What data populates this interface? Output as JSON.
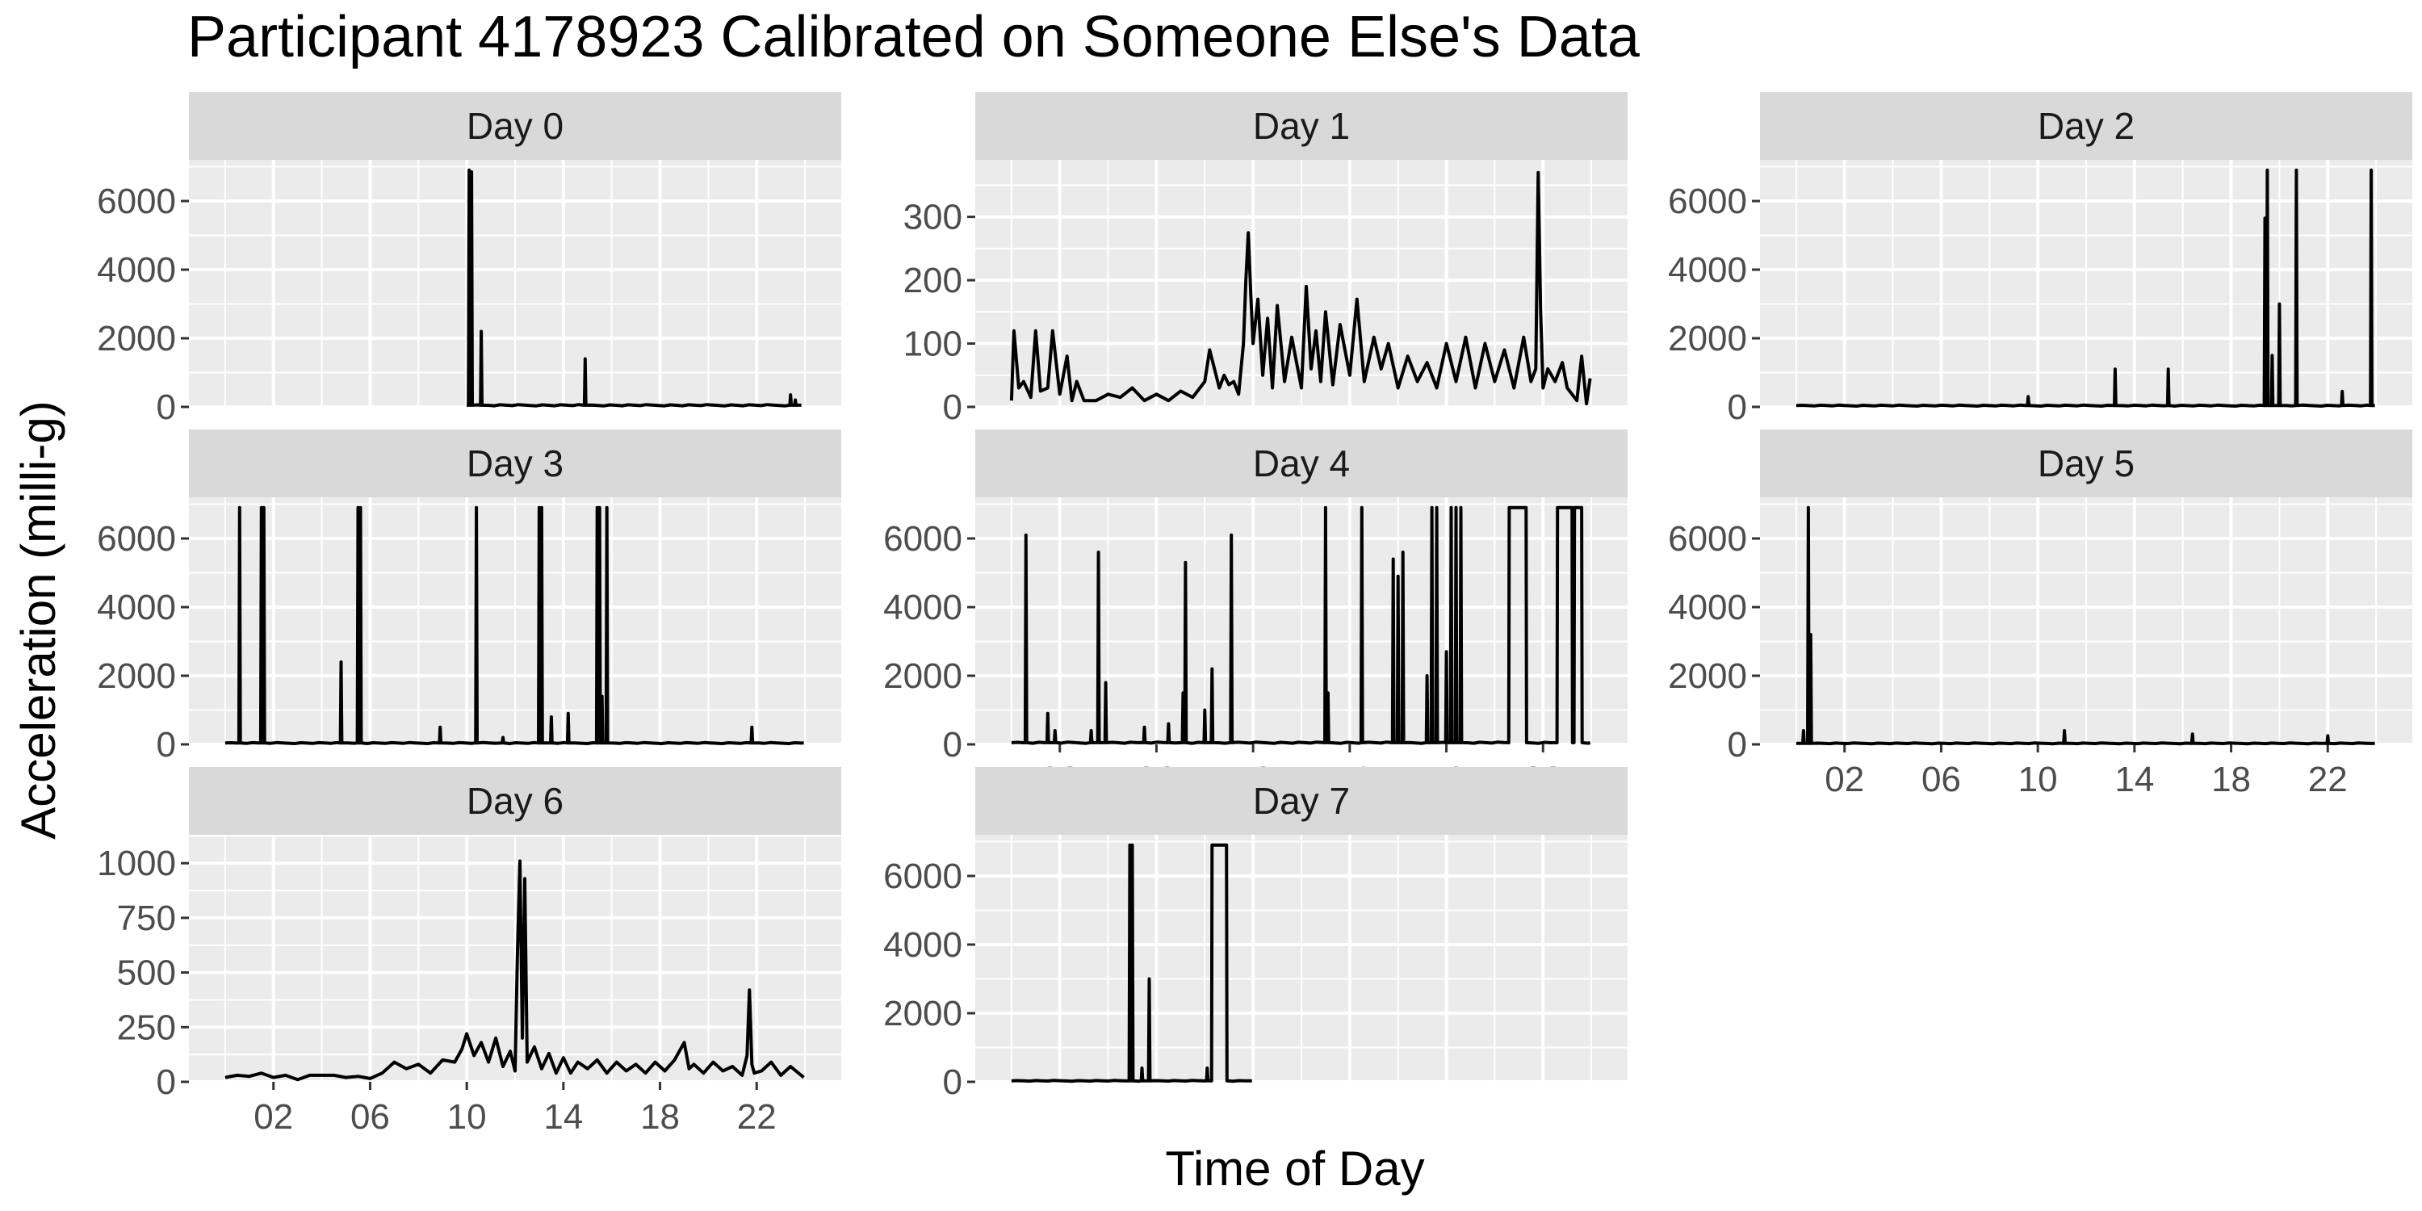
{
  "chart_data": {
    "type": "line",
    "title": "Participant 4178923 Calibrated on Someone Else's Data",
    "xlabel": "Time of Day",
    "ylabel": "Acceleration (milli-g)",
    "x_unit": "hour of day",
    "x_tick_labels": [
      "02",
      "06",
      "10",
      "14",
      "18",
      "22"
    ],
    "x_ticks": [
      2,
      6,
      10,
      14,
      18,
      22
    ],
    "grid": true,
    "facet_layout": "3 columns, 3 rows (Day 0 to Day 7), shared x axis, free y axis",
    "line_color": "#000000",
    "panel_background": "#EBEBEB",
    "strip_background": "#D9D9D9",
    "grid_color": "#FFFFFF",
    "panels": [
      {
        "label": "Day 0",
        "ylim": [
          0,
          7200
        ],
        "y_ticks": [
          0,
          2000,
          4000,
          6000
        ],
        "y_tick_labels": [
          "0",
          "2000",
          "4000",
          "6000"
        ],
        "x_range": [
          10.0,
          23.85
        ],
        "baseline": 50,
        "spikes": [
          [
            10.1,
            6900
          ],
          [
            10.2,
            6850
          ],
          [
            10.6,
            2200
          ],
          [
            14.9,
            1400
          ],
          [
            23.4,
            350
          ],
          [
            23.6,
            200
          ]
        ]
      },
      {
        "label": "Day 1",
        "ylim": [
          0,
          390
        ],
        "y_ticks": [
          0,
          100,
          200,
          300
        ],
        "y_tick_labels": [
          "0",
          "100",
          "200",
          "300"
        ],
        "x_range": [
          0.0,
          23.95
        ],
        "series_x": [
          0.0,
          0.1,
          0.3,
          0.5,
          0.8,
          1.0,
          1.2,
          1.5,
          1.7,
          2.0,
          2.3,
          2.5,
          2.7,
          3.0,
          3.5,
          4.0,
          4.5,
          5.0,
          5.5,
          6.0,
          6.5,
          7.0,
          7.5,
          8.0,
          8.2,
          8.4,
          8.6,
          8.8,
          9.0,
          9.2,
          9.4,
          9.6,
          9.7,
          9.8,
          9.9,
          10.0,
          10.2,
          10.4,
          10.6,
          10.8,
          11.0,
          11.3,
          11.6,
          12.0,
          12.2,
          12.4,
          12.6,
          12.8,
          13.0,
          13.3,
          13.6,
          14.0,
          14.3,
          14.6,
          15.0,
          15.3,
          15.6,
          16.0,
          16.4,
          16.8,
          17.2,
          17.6,
          18.0,
          18.4,
          18.8,
          19.2,
          19.6,
          20.0,
          20.4,
          20.8,
          21.2,
          21.5,
          21.7,
          21.8,
          21.9,
          22.0,
          22.2,
          22.5,
          22.8,
          23.0,
          23.2,
          23.4,
          23.6,
          23.8,
          23.95
        ],
        "series_y": [
          10,
          120,
          30,
          40,
          15,
          120,
          25,
          30,
          120,
          20,
          80,
          10,
          40,
          10,
          10,
          20,
          15,
          30,
          10,
          20,
          10,
          25,
          15,
          40,
          90,
          60,
          30,
          50,
          35,
          40,
          20,
          100,
          200,
          275,
          180,
          100,
          170,
          50,
          140,
          30,
          160,
          40,
          110,
          30,
          190,
          60,
          120,
          40,
          150,
          35,
          130,
          50,
          170,
          40,
          110,
          60,
          100,
          30,
          80,
          40,
          70,
          30,
          100,
          40,
          110,
          30,
          100,
          40,
          90,
          30,
          110,
          40,
          60,
          370,
          150,
          30,
          60,
          40,
          70,
          30,
          20,
          10,
          80,
          5,
          45
        ]
      },
      {
        "label": "Day 2",
        "ylim": [
          0,
          7200
        ],
        "y_ticks": [
          0,
          2000,
          4000,
          6000
        ],
        "y_tick_labels": [
          "0",
          "2000",
          "4000",
          "6000"
        ],
        "x_range": [
          0.0,
          23.95
        ],
        "baseline": 40,
        "spikes": [
          [
            9.6,
            300
          ],
          [
            13.2,
            1100
          ],
          [
            15.4,
            1100
          ],
          [
            19.4,
            5500
          ],
          [
            19.5,
            6900
          ],
          [
            19.7,
            1500
          ],
          [
            20.0,
            3000
          ],
          [
            20.7,
            6900
          ],
          [
            22.6,
            450
          ],
          [
            23.8,
            6900
          ]
        ]
      },
      {
        "label": "Day 3",
        "ylim": [
          0,
          7200
        ],
        "y_ticks": [
          0,
          2000,
          4000,
          6000
        ],
        "y_tick_labels": [
          "0",
          "2000",
          "4000",
          "6000"
        ],
        "x_range": [
          0.0,
          23.95
        ],
        "baseline": 40,
        "spikes": [
          [
            0.6,
            6900
          ],
          [
            1.5,
            6900
          ],
          [
            1.6,
            6900
          ],
          [
            4.8,
            2400
          ],
          [
            5.5,
            6900
          ],
          [
            5.6,
            6900
          ],
          [
            8.9,
            500
          ],
          [
            10.4,
            6900
          ],
          [
            11.5,
            200
          ],
          [
            13.0,
            6900
          ],
          [
            13.1,
            6900
          ],
          [
            13.5,
            800
          ],
          [
            14.2,
            900
          ],
          [
            15.4,
            6900
          ],
          [
            15.5,
            6900
          ],
          [
            15.6,
            1400
          ],
          [
            15.8,
            6900
          ],
          [
            21.8,
            500
          ]
        ]
      },
      {
        "label": "Day 4",
        "ylim": [
          0,
          7200
        ],
        "y_ticks": [
          0,
          2000,
          4000,
          6000
        ],
        "y_tick_labels": [
          "0",
          "2000",
          "4000",
          "6000"
        ],
        "x_range": [
          0.0,
          23.95
        ],
        "baseline": 50,
        "spikes": [
          [
            0.6,
            6100
          ],
          [
            1.5,
            900
          ],
          [
            1.8,
            400
          ],
          [
            3.3,
            400
          ],
          [
            3.6,
            5600
          ],
          [
            3.9,
            1800
          ],
          [
            5.5,
            500
          ],
          [
            6.5,
            600
          ],
          [
            7.1,
            1500
          ],
          [
            7.2,
            5300
          ],
          [
            8.0,
            1000
          ],
          [
            8.3,
            2200
          ],
          [
            9.1,
            6100
          ],
          [
            13.0,
            6900
          ],
          [
            13.1,
            1500
          ],
          [
            14.5,
            6900
          ],
          [
            15.8,
            5400
          ],
          [
            16.0,
            4900
          ],
          [
            16.2,
            5600
          ],
          [
            17.2,
            2000
          ],
          [
            17.4,
            6900
          ],
          [
            17.6,
            6900
          ],
          [
            18.0,
            2700
          ],
          [
            18.2,
            6900
          ],
          [
            18.4,
            6900
          ],
          [
            18.6,
            6900
          ]
        ],
        "plateaus": [
          [
            20.6,
            21.3,
            6900
          ],
          [
            22.6,
            23.2,
            6900
          ],
          [
            23.3,
            23.6,
            6900
          ]
        ]
      },
      {
        "label": "Day 5",
        "ylim": [
          0,
          7200
        ],
        "y_ticks": [
          0,
          2000,
          4000,
          6000
        ],
        "y_tick_labels": [
          "0",
          "2000",
          "4000",
          "6000"
        ],
        "x_range": [
          0.0,
          23.95
        ],
        "baseline": 30,
        "spikes": [
          [
            0.3,
            400
          ],
          [
            0.5,
            6900
          ],
          [
            0.6,
            3200
          ],
          [
            11.1,
            400
          ],
          [
            16.4,
            300
          ],
          [
            22.0,
            250
          ]
        ]
      },
      {
        "label": "Day 6",
        "ylim": [
          0,
          1130
        ],
        "y_ticks": [
          0,
          250,
          500,
          750,
          1000
        ],
        "y_tick_labels": [
          "0",
          "250",
          "500",
          "750",
          "1000"
        ],
        "x_range": [
          0.0,
          23.95
        ],
        "series_x": [
          0.0,
          0.5,
          1.0,
          1.5,
          2.0,
          2.5,
          3.0,
          3.5,
          4.0,
          4.5,
          5.0,
          5.5,
          6.0,
          6.5,
          7.0,
          7.5,
          8.0,
          8.5,
          9.0,
          9.5,
          9.8,
          10.0,
          10.3,
          10.6,
          10.9,
          11.2,
          11.5,
          11.8,
          12.0,
          12.1,
          12.2,
          12.3,
          12.4,
          12.5,
          12.8,
          13.1,
          13.4,
          13.7,
          14.0,
          14.3,
          14.6,
          15.0,
          15.4,
          15.8,
          16.2,
          16.6,
          17.0,
          17.4,
          17.8,
          18.2,
          18.6,
          19.0,
          19.2,
          19.4,
          19.8,
          20.2,
          20.6,
          21.0,
          21.4,
          21.6,
          21.7,
          21.8,
          21.9,
          22.2,
          22.6,
          23.0,
          23.4,
          23.95
        ],
        "series_y": [
          20,
          30,
          25,
          40,
          20,
          30,
          10,
          30,
          30,
          30,
          20,
          25,
          15,
          40,
          90,
          60,
          80,
          40,
          100,
          90,
          150,
          220,
          120,
          180,
          90,
          200,
          70,
          140,
          50,
          600,
          1010,
          200,
          930,
          90,
          160,
          60,
          130,
          40,
          110,
          40,
          90,
          60,
          100,
          40,
          90,
          50,
          80,
          40,
          90,
          50,
          100,
          180,
          60,
          80,
          40,
          90,
          50,
          70,
          30,
          120,
          420,
          80,
          40,
          50,
          90,
          30,
          70,
          20
        ]
      },
      {
        "label": "Day 7",
        "ylim": [
          0,
          7200
        ],
        "y_ticks": [
          0,
          2000,
          4000,
          6000
        ],
        "y_tick_labels": [
          "0",
          "2000",
          "4000",
          "6000"
        ],
        "x_range": [
          0.0,
          9.95
        ],
        "baseline": 30,
        "spikes": [
          [
            4.9,
            6900
          ],
          [
            5.0,
            6900
          ],
          [
            5.4,
            400
          ],
          [
            5.7,
            3000
          ],
          [
            8.1,
            400
          ]
        ],
        "plateaus": [
          [
            8.3,
            8.9,
            6900
          ]
        ]
      }
    ]
  }
}
